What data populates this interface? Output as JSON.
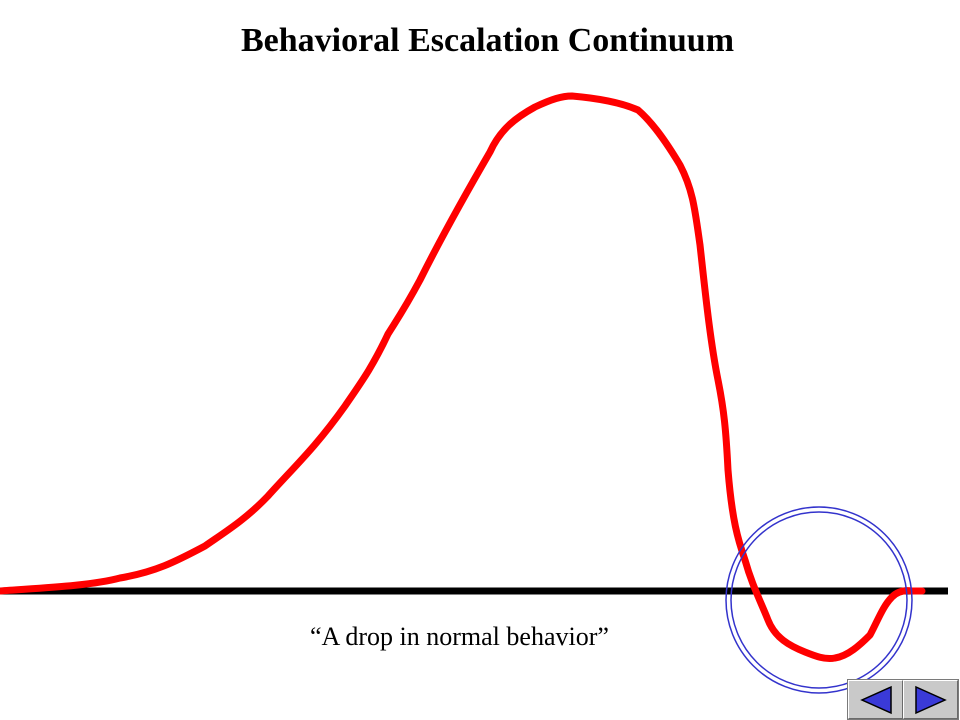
{
  "slide": {
    "title": "Behavioral Escalation Continuum",
    "caption": "“A drop in normal behavior”"
  },
  "colors": {
    "curve": "#ff0000",
    "baseline": "#000000",
    "highlight_circle": "#3333cc",
    "nav_fill": "#3a3ad8"
  },
  "navigation": {
    "previous_icon": "triangle-left-icon",
    "next_icon": "triangle-right-icon"
  }
}
